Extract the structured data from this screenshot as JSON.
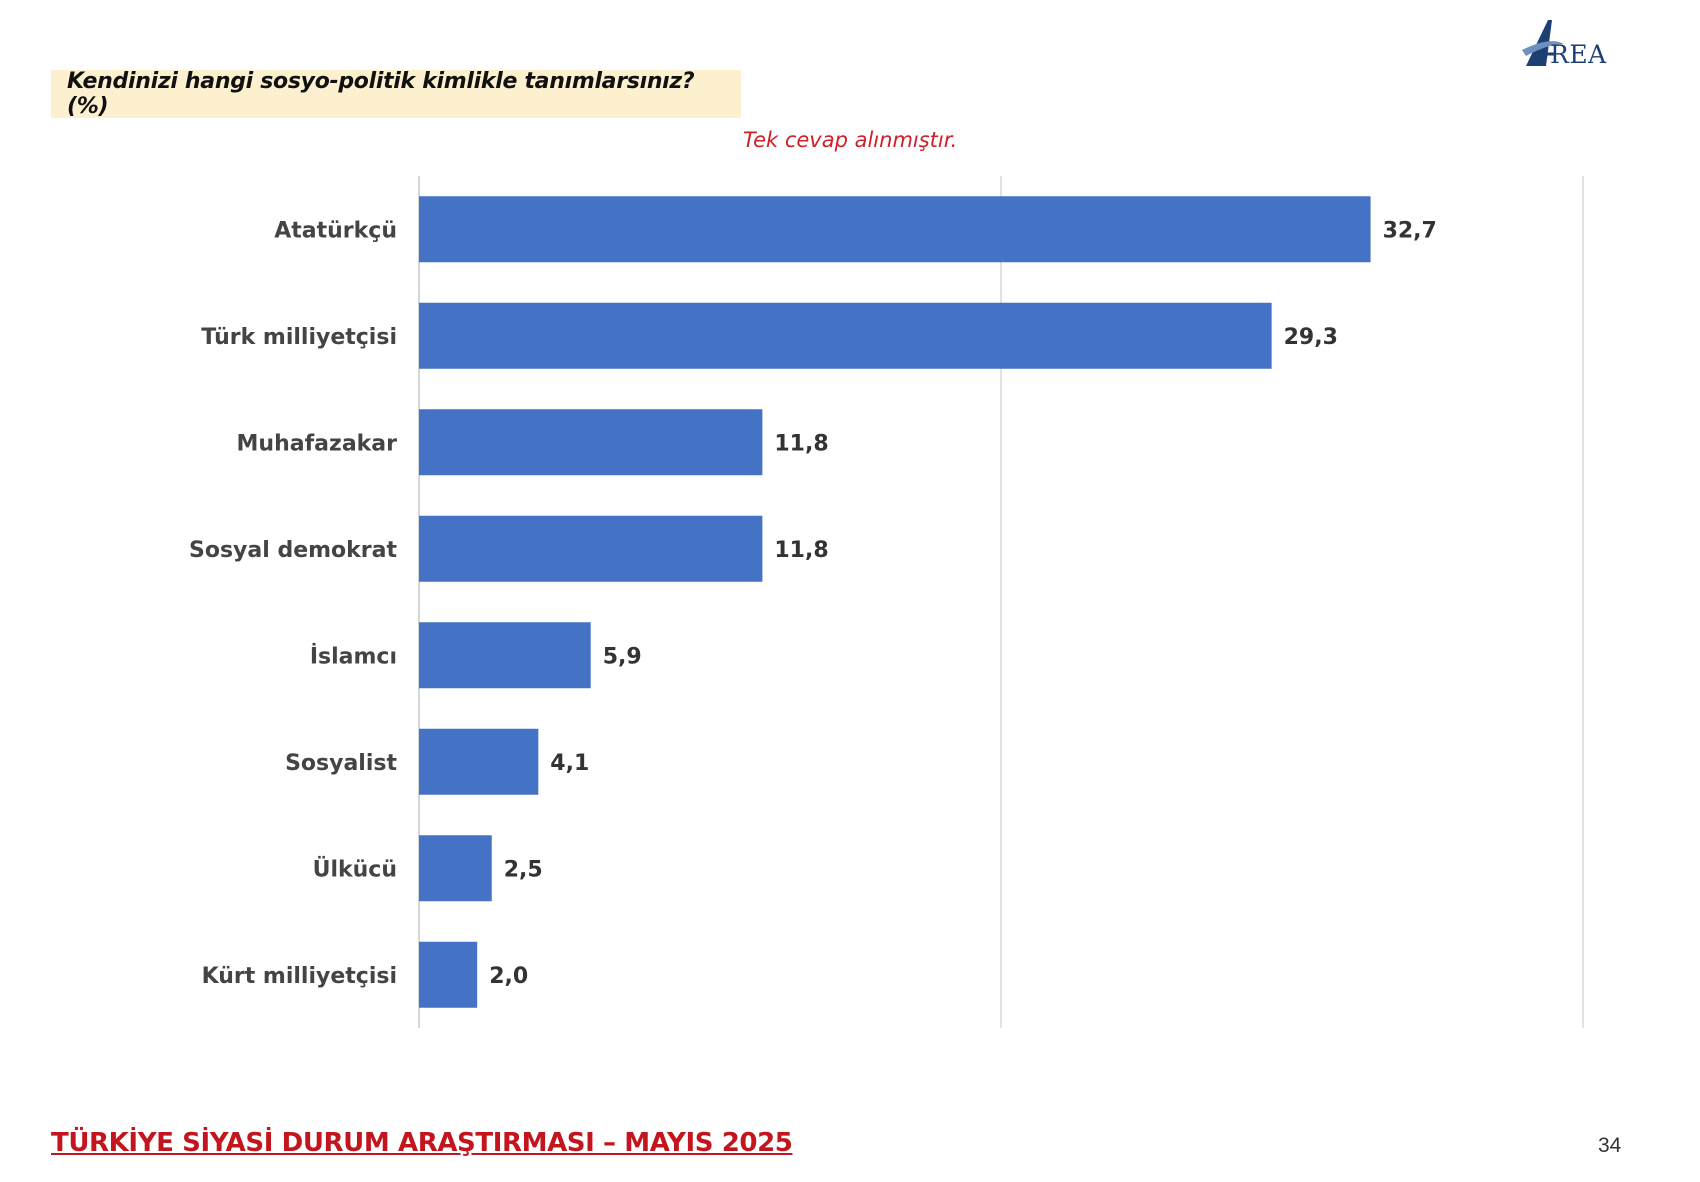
{
  "header": {
    "question": "Kendinizi hangi sosyo-politik kimlikle tanımlarsınız? (%)",
    "note": "Tek cevap alınmıştır.",
    "logo_text": "REA",
    "logo_color": "#1d3f74"
  },
  "chart_data": {
    "type": "bar",
    "orientation": "horizontal",
    "categories": [
      "Atatürkçü",
      "Türk milliyetçisi",
      "Muhafazakar",
      "Sosyal demokrat",
      "İslamcı",
      "Sosyalist",
      "Ülkücü",
      "Kürt milliyetçisi"
    ],
    "values": [
      32.7,
      29.3,
      11.8,
      11.8,
      5.9,
      4.1,
      2.5,
      2.0
    ],
    "value_labels": [
      "32,7",
      "29,3",
      "11,8",
      "11,8",
      "5,9",
      "4,1",
      "2,5",
      "2,0"
    ],
    "xlim": [
      0,
      40
    ],
    "gridlines": [
      0,
      20,
      40
    ],
    "bar_color": "#4472c4",
    "grid": true,
    "legend": "none"
  },
  "footer": {
    "title": "TÜRKİYE SİYASİ DURUM ARAŞTIRMASI – MAYIS 2025",
    "page_number": "34"
  }
}
